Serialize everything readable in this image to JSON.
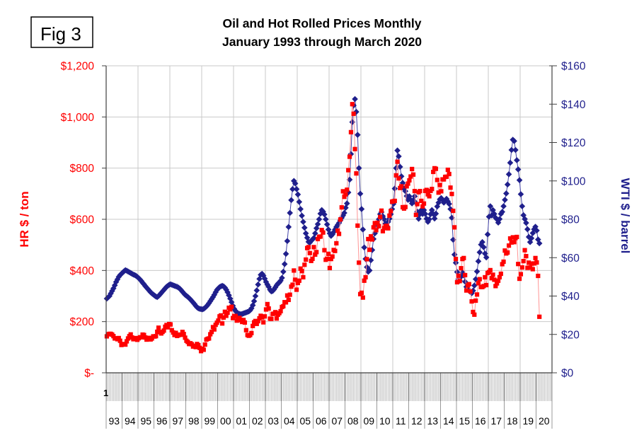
{
  "figure_label": "Fig 3",
  "title": {
    "line1": "Oil and Hot Rolled Prices Monthly",
    "line2": "January 1993 through March 2020"
  },
  "left_axis": {
    "title": "HR $ / ton",
    "text_color": "#ff0000",
    "ticks": [
      "$1,200",
      "$1,000",
      "$800",
      "$600",
      "$400",
      "$200",
      "$-"
    ],
    "min": 0,
    "max": 1200,
    "step": 200
  },
  "right_axis": {
    "title": "WTI $ / barrel",
    "text_color": "#1f1f8c",
    "ticks": [
      "$160",
      "$140",
      "$120",
      "$100",
      "$80",
      "$60",
      "$40",
      "$20",
      "$0"
    ],
    "min": 0,
    "max": 160,
    "step": 20
  },
  "x_axis": {
    "first_category_label": "1",
    "years": [
      "93",
      "94",
      "95",
      "96",
      "97",
      "98",
      "99",
      "00",
      "01",
      "02",
      "03",
      "04",
      "05",
      "06",
      "07",
      "08",
      "09",
      "10",
      "11",
      "12",
      "13",
      "14",
      "15",
      "16",
      "17",
      "18",
      "19",
      "20"
    ],
    "category_slots": 336,
    "data_months": 327
  },
  "colors": {
    "hr_marker": "#1f1f8c",
    "hr_line": "#4343a8",
    "wti_marker": "#ff0000",
    "wti_line": "#ff9595",
    "gridline": "#c9c9c9",
    "axis_line": "#404040",
    "month_tick": "#ababab",
    "year_separator": "#999999"
  },
  "chart_data": {
    "type": "line",
    "x_start": "1993-01",
    "x_end": "2020-03",
    "grid": "on",
    "legend": "none",
    "left_axis_range": [
      0,
      1200
    ],
    "right_axis_range": [
      0,
      160
    ],
    "series": [
      {
        "name": "HR $ / ton",
        "axis": "left",
        "marker": "diamond",
        "marker_color": "#1f1f8c",
        "line_color": "#4343a8",
        "values": [
          290,
          295,
          300,
          310,
          320,
          330,
          342,
          355,
          365,
          375,
          382,
          387,
          392,
          397,
          401,
          399,
          396,
          393,
          390,
          387,
          384,
          382,
          379,
          375,
          370,
          365,
          359,
          352,
          346,
          339,
          333,
          327,
          321,
          315,
          310,
          306,
          302,
          298,
          296,
          300,
          306,
          312,
          318,
          324,
          330,
          336,
          340,
          344,
          346,
          344,
          342,
          340,
          338,
          336,
          333,
          329,
          323,
          317,
          311,
          305,
          301,
          297,
          292,
          287,
          281,
          275,
          269,
          262,
          256,
          252,
          250,
          249,
          248,
          250,
          254,
          259,
          265,
          272,
          280,
          288,
          296,
          305,
          315,
          324,
          330,
          335,
          338,
          340,
          338,
          333,
          325,
          315,
          303,
          290,
          276,
          262,
          250,
          242,
          236,
          232,
          230,
          229,
          230,
          232,
          234,
          236,
          238,
          240,
          244,
          252,
          264,
          280,
          300,
          322,
          345,
          367,
          383,
          387,
          380,
          368,
          355,
          345,
          336,
          325,
          318,
          320,
          326,
          334,
          342,
          349,
          353,
          360,
          371,
          395,
          425,
          465,
          515,
          570,
          625,
          675,
          718,
          750,
          740,
          718,
          697,
          668,
          640,
          614,
          590,
          567,
          545,
          528,
          512,
          509,
          516,
          521,
          527,
          545,
          565,
          581,
          600,
          622,
          636,
          630,
          619,
          600,
          580,
          560,
          545,
          535,
          541,
          550,
          560,
          570,
          578,
          586,
          596,
          606,
          615,
          625,
          645,
          662,
          705,
          755,
          855,
          980,
          1045,
          1070,
          1020,
          930,
          800,
          700,
          640,
          560,
          490,
          445,
          413,
          395,
          400,
          440,
          480,
          523,
          545,
          565,
          581,
          600,
          620,
          628,
          612,
          600,
          583,
          574,
          590,
          602,
          620,
          640,
          660,
          720,
          800,
          869,
          846,
          805,
          768,
          742,
          720,
          710,
          691,
          676,
          690,
          676,
          662,
          675,
          690,
          664,
          630,
          602,
          620,
          636,
          621,
          636,
          621,
          602,
          590,
          600,
          620,
          636,
          621,
          603,
          622,
          650,
          665,
          678,
          683,
          675,
          665,
          671,
          680,
          670,
          660,
          640,
          606,
          520,
          462,
          430,
          394,
          366,
          360,
          376,
          392,
          381,
          356,
          336,
          330,
          321,
          316,
          311,
          321,
          341,
          366,
          396,
          436,
          471,
          501,
          511,
          491,
          466,
          451,
          541,
          610,
          651,
          615,
          636,
          621,
          606,
          600,
          587,
          601,
          621,
          629,
          651,
          676,
          701,
          736,
          776,
          821,
          871,
          911,
          906,
          871,
          831,
          795,
          753,
          698,
          651,
          616,
          601,
          586,
          561,
          531,
          511,
          526,
          546,
          561,
          571,
          556,
          521,
          506
        ]
      },
      {
        "name": "WTI $ / barrel",
        "axis": "right",
        "marker": "square",
        "marker_color": "#ff0000",
        "line_color": "#ff9595",
        "values": [
          19.0,
          20.1,
          20.3,
          20.3,
          19.9,
          19.1,
          17.9,
          18.0,
          17.5,
          18.1,
          16.7,
          14.5,
          15.0,
          14.8,
          14.7,
          16.4,
          17.9,
          19.1,
          20.0,
          18.4,
          17.5,
          17.7,
          18.1,
          17.2,
          18.0,
          18.5,
          18.5,
          19.9,
          19.7,
          18.4,
          17.3,
          18.0,
          18.2,
          17.4,
          17.9,
          19.0,
          18.9,
          19.1,
          21.4,
          23.5,
          21.2,
          20.5,
          21.3,
          22.0,
          24.0,
          24.9,
          23.7,
          25.4,
          25.2,
          22.2,
          21.0,
          19.7,
          20.8,
          19.2,
          19.6,
          19.9,
          19.8,
          21.3,
          20.2,
          18.3,
          16.7,
          16.1,
          15.0,
          15.4,
          14.9,
          13.7,
          14.1,
          13.4,
          15.0,
          14.4,
          13.0,
          11.3,
          12.5,
          12.0,
          14.7,
          17.3,
          17.7,
          17.9,
          20.1,
          21.3,
          23.8,
          22.6,
          25.0,
          26.1,
          27.2,
          29.4,
          29.9,
          25.7,
          28.8,
          31.8,
          29.7,
          31.3,
          33.9,
          33.1,
          34.4,
          28.5,
          29.6,
          29.6,
          27.2,
          27.4,
          28.6,
          27.6,
          26.5,
          27.5,
          26.2,
          22.2,
          19.7,
          19.3,
          19.7,
          20.7,
          24.4,
          26.3,
          27.0,
          25.5,
          26.9,
          28.4,
          29.7,
          28.9,
          26.3,
          29.4,
          33.0,
          35.8,
          33.5,
          28.2,
          28.1,
          30.7,
          30.8,
          31.6,
          28.3,
          30.3,
          31.1,
          32.1,
          34.3,
          34.7,
          36.8,
          36.7,
          40.3,
          38.0,
          40.7,
          44.9,
          45.9,
          53.3,
          48.5,
          43.3,
          46.8,
          48.0,
          54.3,
          53.0,
          49.8,
          56.3,
          59.0,
          65.0,
          65.5,
          62.4,
          58.3,
          59.4,
          65.5,
          61.6,
          62.9,
          69.7,
          70.9,
          71.0,
          74.4,
          73.1,
          63.9,
          58.9,
          59.4,
          62.0,
          54.6,
          59.3,
          60.6,
          64.0,
          63.5,
          67.5,
          74.1,
          72.4,
          79.9,
          86.2,
          94.6,
          91.7,
          93.0,
          95.4,
          105.6,
          112.6,
          125.4,
          140.0,
          135.0,
          116.6,
          103.9,
          76.7,
          57.4,
          41.0,
          41.7,
          39.2,
          48.0,
          49.8,
          59.2,
          69.7,
          64.1,
          71.1,
          69.5,
          75.8,
          78.0,
          74.3,
          78.2,
          76.4,
          81.2,
          84.5,
          73.8,
          75.4,
          76.4,
          76.6,
          75.3,
          81.9,
          84.3,
          89.2,
          89.4,
          89.6,
          102.9,
          110.0,
          101.3,
          96.3,
          97.2,
          86.3,
          85.6,
          86.4,
          97.2,
          98.6,
          100.3,
          102.3,
          106.2,
          103.3,
          94.7,
          82.3,
          87.9,
          94.1,
          94.7,
          89.6,
          86.7,
          88.2,
          94.8,
          95.3,
          93.0,
          92.0,
          94.8,
          95.8,
          104.7,
          106.6,
          106.3,
          100.5,
          93.9,
          97.9,
          94.6,
          100.8,
          100.8,
          102.1,
          102.2,
          105.8,
          103.6,
          96.5,
          93.2,
          84.4,
          75.8,
          59.3,
          47.2,
          50.6,
          47.8,
          54.5,
          59.3,
          59.8,
          50.9,
          42.9,
          45.5,
          46.2,
          42.4,
          37.2,
          31.7,
          30.3,
          37.6,
          40.8,
          46.7,
          48.8,
          44.7,
          44.7,
          45.2,
          49.8,
          45.7,
          52.0,
          52.5,
          53.5,
          49.3,
          51.1,
          48.5,
          45.2,
          46.6,
          48.0,
          49.8,
          51.6,
          56.6,
          57.9,
          63.7,
          62.2,
          62.7,
          66.3,
          70.0,
          67.9,
          70.6,
          68.1,
          70.2,
          70.8,
          56.7,
          49.0,
          51.4,
          54.9,
          58.2,
          63.9,
          60.8,
          54.7,
          57.4,
          54.8,
          56.9,
          54.0,
          57.0,
          59.8,
          57.5,
          50.5,
          29.2
        ]
      }
    ]
  }
}
